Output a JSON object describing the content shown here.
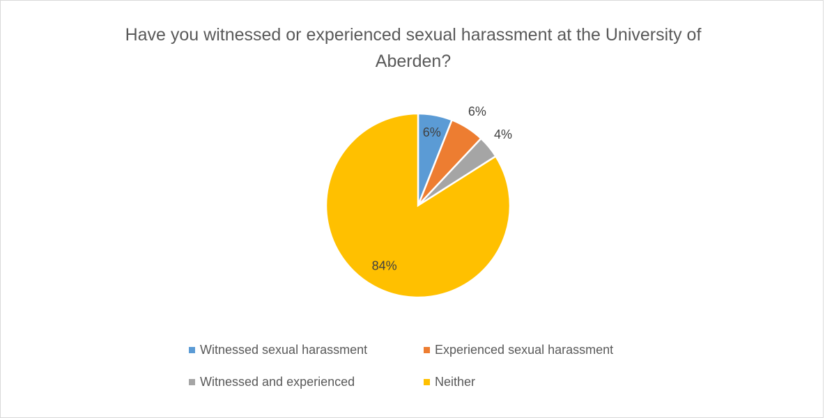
{
  "chart_data": {
    "type": "pie",
    "title": "Have you witnessed or experienced sexual harassment at the University of Aberden?",
    "categories": [
      "Witnessed sexual harassment",
      "Experienced sexual harassment",
      "Witnessed and experienced",
      "Neither"
    ],
    "values": [
      6,
      6,
      4,
      84
    ],
    "value_labels": [
      "6%",
      "6%",
      "4%",
      "84%"
    ],
    "colors": [
      "#5b9bd5",
      "#ed7d31",
      "#a5a5a5",
      "#ffc000"
    ],
    "legend": "bottom"
  }
}
